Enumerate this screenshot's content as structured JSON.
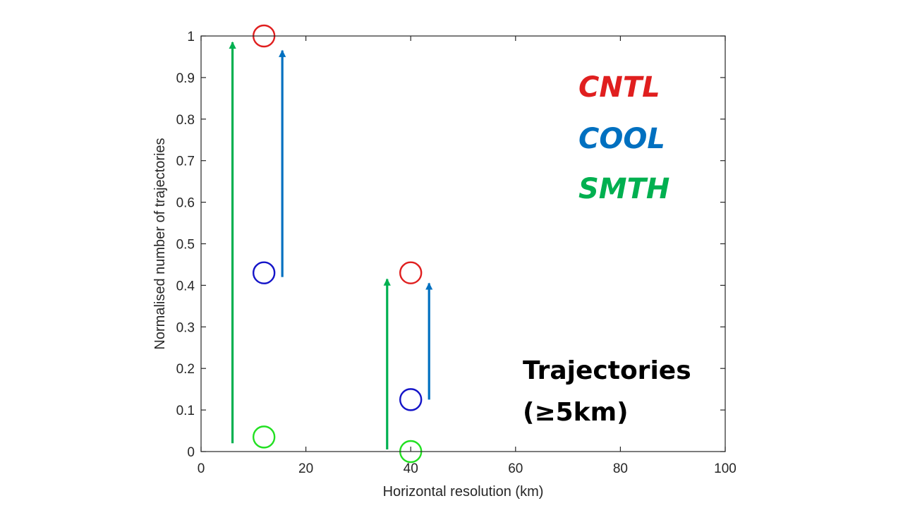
{
  "chart_data": {
    "type": "scatter",
    "xlabel": "Horizontal resolution (km)",
    "ylabel": "Normalised number of trajectories",
    "xlim": [
      0,
      100
    ],
    "ylim": [
      0,
      1
    ],
    "xticks": [
      "0",
      "20",
      "40",
      "60",
      "80",
      "100"
    ],
    "yticks": [
      "0",
      "0.1",
      "0.2",
      "0.3",
      "0.4",
      "0.5",
      "0.6",
      "0.7",
      "0.8",
      "0.9",
      "1"
    ],
    "grid": false,
    "series": [
      {
        "name": "CNTL",
        "color": "#e01f1f",
        "marker_color": "#e01f1f",
        "x": [
          12,
          40
        ],
        "y": [
          1.0,
          0.43
        ]
      },
      {
        "name": "COOL",
        "color": "#0070c0",
        "marker_color": "#1414c8",
        "x": [
          12,
          40
        ],
        "y": [
          0.43,
          0.125
        ]
      },
      {
        "name": "SMTH",
        "color": "#00b050",
        "marker_color": "#22e022",
        "x": [
          12,
          40
        ],
        "y": [
          0.035,
          0.0
        ]
      }
    ],
    "arrows": [
      {
        "series": "SMTH",
        "x": 6,
        "y_from": 0.02,
        "y_to": 0.985
      },
      {
        "series": "COOL",
        "x": 15.5,
        "y_from": 0.42,
        "y_to": 0.965
      },
      {
        "series": "SMTH",
        "x": 35.5,
        "y_from": 0.005,
        "y_to": 0.415
      },
      {
        "series": "COOL",
        "x": 43.5,
        "y_from": 0.125,
        "y_to": 0.405
      }
    ],
    "annotation": [
      "Trajectories",
      "(≥5km)"
    ]
  }
}
